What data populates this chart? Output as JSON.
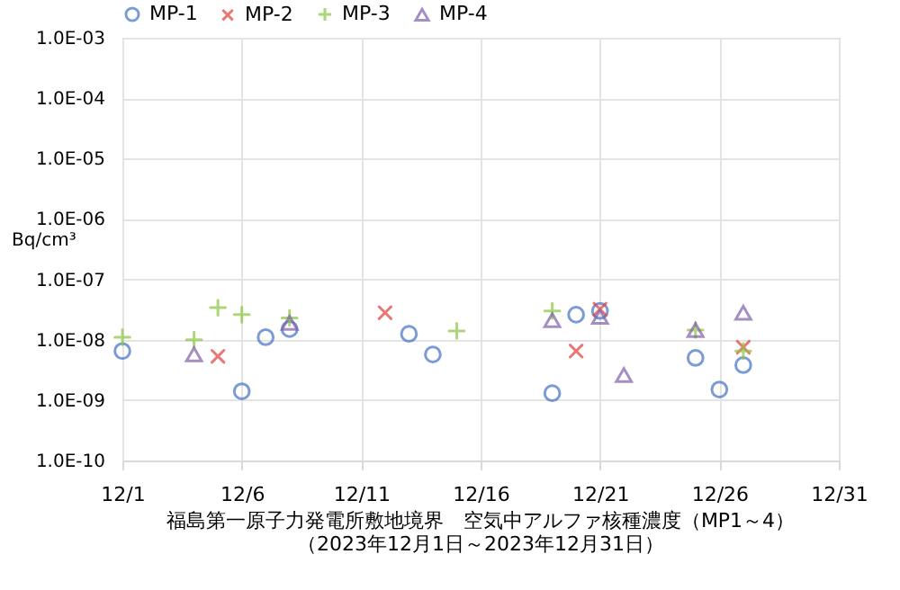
{
  "chart_data": {
    "type": "scatter",
    "title": "福島第一原子力発電所敷地境界　空気中アルファ核種濃度（MP1～4）",
    "subtitle": "（2023年12月1日～2023年12月31日）",
    "ylabel": "Bq/cm³",
    "log": true,
    "grid": true,
    "legend": "top",
    "xlim": [
      "2023-12-01",
      "2023-12-31"
    ],
    "xticks": [
      {
        "value": "2023-12-01",
        "label": "12/1"
      },
      {
        "value": "2023-12-06",
        "label": "12/6"
      },
      {
        "value": "2023-12-11",
        "label": "12/11"
      },
      {
        "value": "2023-12-16",
        "label": "12/16"
      },
      {
        "value": "2023-12-21",
        "label": "12/21"
      },
      {
        "value": "2023-12-26",
        "label": "12/26"
      },
      {
        "value": "2023-12-31",
        "label": "12/31"
      }
    ],
    "ylim": [
      1e-10,
      0.001
    ],
    "yticks": [
      {
        "value": 1e-10,
        "label": "1.0E-10"
      },
      {
        "value": 1e-09,
        "label": "1.0E-09"
      },
      {
        "value": 1e-08,
        "label": "1.0E-08"
      },
      {
        "value": 1e-07,
        "label": "1.0E-07"
      },
      {
        "value": 1e-06,
        "label": "1.0E-06"
      },
      {
        "value": 1e-05,
        "label": "1.0E-05"
      },
      {
        "value": 0.0001,
        "label": "1.0E-04"
      },
      {
        "value": 0.001,
        "label": "1.0E-03"
      }
    ],
    "series": [
      {
        "name": "MP-1",
        "color": "#4472c4",
        "marker": "circle",
        "x": [
          "2023-12-01",
          "2023-12-06",
          "2023-12-07",
          "2023-12-08",
          "2023-12-13",
          "2023-12-14",
          "2023-12-19",
          "2023-12-20",
          "2023-12-21",
          "2023-12-25",
          "2023-12-26",
          "2023-12-27"
        ],
        "values": [
          6.5e-09,
          1.4e-09,
          1.1e-08,
          1.5e-08,
          1.25e-08,
          5.7e-09,
          1.3e-09,
          2.6e-08,
          3e-08,
          5e-09,
          1.5e-09,
          3.8e-09
        ]
      },
      {
        "name": "MP-2",
        "color": "#e0403c",
        "marker": "cross",
        "x": [
          "2023-12-05",
          "2023-12-12",
          "2023-12-20",
          "2023-12-21",
          "2023-12-27"
        ],
        "values": [
          5.3e-09,
          2.8e-08,
          6.5e-09,
          3.2e-08,
          7.5e-09
        ]
      },
      {
        "name": "MP-3",
        "color": "#8cc63f",
        "marker": "plus",
        "x": [
          "2023-12-01",
          "2023-12-04",
          "2023-12-05",
          "2023-12-06",
          "2023-12-08",
          "2023-12-15",
          "2023-12-19",
          "2023-12-25",
          "2023-12-27"
        ],
        "values": [
          1.1e-08,
          1e-08,
          3.4e-08,
          2.6e-08,
          2.3e-08,
          1.4e-08,
          3e-08,
          1.45e-08,
          6.5e-09
        ]
      },
      {
        "name": "MP-4",
        "color": "#7f60a8",
        "marker": "triangle",
        "x": [
          "2023-12-04",
          "2023-12-08",
          "2023-12-19",
          "2023-12-21",
          "2023-12-22",
          "2023-12-25",
          "2023-12-27"
        ],
        "values": [
          5.7e-09,
          1.9e-08,
          2.1e-08,
          2.4e-08,
          2.6e-09,
          1.45e-08,
          2.8e-08
        ]
      }
    ]
  }
}
